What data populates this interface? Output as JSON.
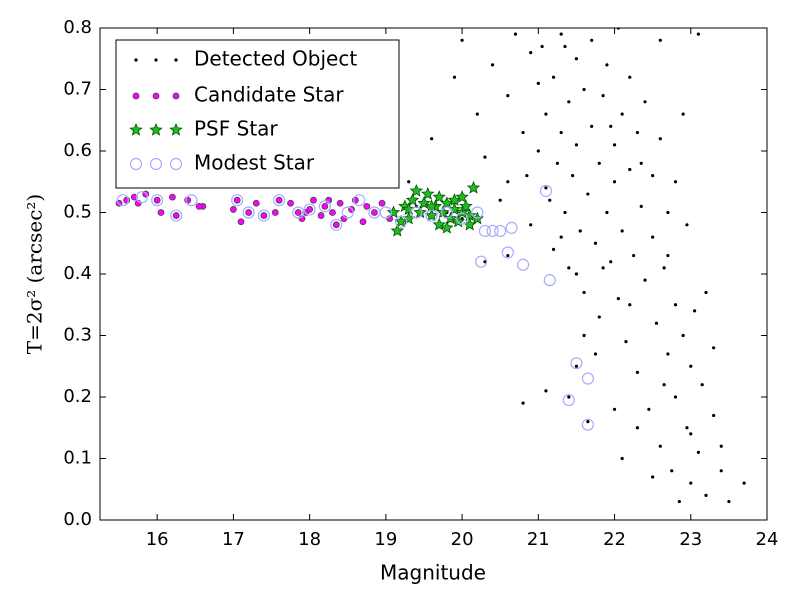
{
  "chart_data": {
    "type": "scatter",
    "xlabel": "Magnitude",
    "ylabel": "T=2σ² (arcsec²)",
    "xlim": [
      15.25,
      24
    ],
    "ylim": [
      0,
      0.8
    ],
    "xticks": [
      16,
      17,
      18,
      19,
      20,
      21,
      22,
      23,
      24
    ],
    "yticks": [
      {
        "value": 0,
        "label": "0.0"
      },
      0.1,
      0.2,
      0.3,
      0.4,
      0.5,
      0.6,
      0.7,
      0.8
    ],
    "legend": "upper left",
    "series": [
      {
        "name": "Detected Object",
        "color": "#000000",
        "marker": "point",
        "x": [
          19.3,
          19.6,
          19.9,
          20.0,
          20.2,
          20.3,
          20.4,
          20.5,
          20.6,
          20.7,
          20.8,
          20.85,
          20.9,
          21.0,
          21.0,
          21.05,
          21.1,
          21.15,
          21.2,
          21.2,
          21.25,
          21.3,
          21.3,
          21.35,
          21.4,
          21.4,
          21.45,
          21.5,
          21.5,
          21.55,
          21.6,
          21.6,
          21.65,
          21.7,
          21.7,
          21.75,
          21.8,
          21.8,
          21.85,
          21.9,
          21.9,
          21.95,
          22.0,
          22.0,
          22.05,
          22.1,
          22.1,
          22.15,
          22.2,
          22.2,
          22.25,
          22.3,
          22.3,
          22.35,
          22.4,
          22.4,
          22.45,
          22.5,
          22.5,
          22.55,
          22.6,
          22.6,
          22.65,
          22.7,
          22.7,
          22.75,
          22.8,
          22.8,
          22.85,
          22.9,
          22.95,
          23.0,
          23.0,
          23.05,
          23.1,
          23.15,
          23.2,
          23.2,
          23.3,
          23.4,
          23.5,
          23.7,
          23.3,
          22.9,
          23.1,
          22.8,
          22.95,
          22.6,
          21.1,
          20.8,
          22.1,
          22.0,
          22.3,
          22.5,
          21.6,
          21.75,
          22.2,
          21.5,
          21.3,
          20.6,
          21.1,
          21.5,
          21.4,
          21.65,
          19.4,
          19.8,
          20.0,
          19.5,
          20.3,
          20.6,
          21.85,
          22.05,
          21.35,
          20.9,
          21.95,
          22.35,
          22.7,
          23.0,
          23.4,
          22.65
        ],
        "y": [
          0.55,
          0.62,
          0.72,
          0.78,
          0.66,
          0.59,
          0.74,
          0.52,
          0.69,
          0.79,
          0.63,
          0.56,
          0.48,
          0.71,
          0.6,
          0.77,
          0.66,
          0.52,
          0.44,
          0.72,
          0.58,
          0.63,
          0.79,
          0.5,
          0.68,
          0.41,
          0.56,
          0.75,
          0.61,
          0.47,
          0.7,
          0.37,
          0.53,
          0.64,
          0.78,
          0.45,
          0.58,
          0.33,
          0.69,
          0.5,
          0.74,
          0.42,
          0.61,
          0.55,
          0.36,
          0.66,
          0.47,
          0.29,
          0.57,
          0.72,
          0.43,
          0.63,
          0.24,
          0.51,
          0.39,
          0.68,
          0.18,
          0.46,
          0.56,
          0.32,
          0.12,
          0.62,
          0.41,
          0.27,
          0.5,
          0.08,
          0.35,
          0.2,
          0.03,
          0.3,
          0.15,
          0.25,
          0.06,
          0.34,
          0.11,
          0.22,
          0.04,
          0.37,
          0.17,
          0.08,
          0.03,
          0.06,
          0.28,
          0.66,
          0.79,
          0.55,
          0.48,
          0.78,
          0.21,
          0.19,
          0.1,
          0.18,
          0.15,
          0.07,
          0.3,
          0.27,
          0.35,
          0.4,
          0.46,
          0.55,
          0.54,
          0.25,
          0.2,
          0.16,
          0.51,
          0.5,
          0.49,
          0.52,
          0.42,
          0.43,
          0.41,
          0.8,
          0.77,
          0.76,
          0.64,
          0.58,
          0.43,
          0.14,
          0.12,
          0.22
        ]
      },
      {
        "name": "Candidate Star",
        "color": "#ff00ff",
        "marker": "circle",
        "x": [
          15.5,
          15.6,
          15.7,
          15.75,
          15.85,
          16.0,
          16.05,
          16.2,
          16.25,
          16.4,
          16.6,
          17.0,
          17.05,
          17.1,
          17.2,
          17.3,
          17.4,
          17.55,
          17.6,
          17.75,
          17.85,
          17.9,
          18.0,
          18.05,
          18.15,
          18.2,
          18.3,
          18.35,
          18.4,
          18.45,
          18.55,
          18.6,
          18.7,
          18.75,
          18.85,
          18.95,
          19.05,
          16.55,
          17.95,
          18.25
        ],
        "y": [
          0.515,
          0.52,
          0.525,
          0.515,
          0.53,
          0.52,
          0.5,
          0.525,
          0.495,
          0.52,
          0.51,
          0.505,
          0.52,
          0.485,
          0.5,
          0.515,
          0.495,
          0.5,
          0.52,
          0.515,
          0.5,
          0.49,
          0.505,
          0.52,
          0.495,
          0.51,
          0.5,
          0.48,
          0.515,
          0.49,
          0.505,
          0.52,
          0.485,
          0.51,
          0.5,
          0.515,
          0.49,
          0.51,
          0.5,
          0.52
        ]
      },
      {
        "name": "PSF Star",
        "color": "#22bb22",
        "marker": "star",
        "x": [
          19.1,
          19.15,
          19.2,
          19.25,
          19.3,
          19.35,
          19.4,
          19.45,
          19.5,
          19.55,
          19.6,
          19.65,
          19.7,
          19.7,
          19.75,
          19.8,
          19.85,
          19.9,
          19.9,
          19.95,
          20.0,
          20.0,
          20.05,
          20.1,
          20.15,
          20.1,
          19.3,
          19.6,
          19.8,
          20.2
        ],
        "y": [
          0.5,
          0.47,
          0.485,
          0.51,
          0.49,
          0.52,
          0.535,
          0.5,
          0.515,
          0.53,
          0.495,
          0.51,
          0.48,
          0.525,
          0.5,
          0.515,
          0.49,
          0.52,
          0.505,
          0.485,
          0.5,
          0.525,
          0.51,
          0.495,
          0.54,
          0.48,
          0.505,
          0.51,
          0.475,
          0.49
        ]
      },
      {
        "name": "Modest Star",
        "color": "#aaaaff",
        "marker": "open-circle",
        "x": [
          15.55,
          15.8,
          16.0,
          16.25,
          16.45,
          17.05,
          17.2,
          17.4,
          17.6,
          17.85,
          18.0,
          18.2,
          18.35,
          18.5,
          18.65,
          18.85,
          19.0,
          19.2,
          19.4,
          19.6,
          19.8,
          20.0,
          20.2,
          20.25,
          20.3,
          20.4,
          20.5,
          20.6,
          20.65,
          20.8,
          21.1,
          21.15,
          21.4,
          21.5,
          21.65,
          21.65
        ],
        "y": [
          0.52,
          0.525,
          0.52,
          0.495,
          0.52,
          0.52,
          0.5,
          0.495,
          0.52,
          0.5,
          0.505,
          0.51,
          0.48,
          0.5,
          0.52,
          0.5,
          0.5,
          0.485,
          0.5,
          0.495,
          0.5,
          0.49,
          0.5,
          0.42,
          0.47,
          0.47,
          0.47,
          0.435,
          0.475,
          0.415,
          0.535,
          0.39,
          0.195,
          0.255,
          0.23,
          0.155
        ]
      }
    ]
  }
}
